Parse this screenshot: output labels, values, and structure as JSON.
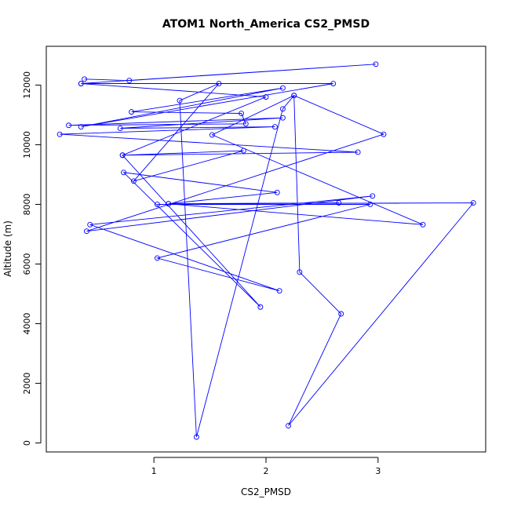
{
  "chart_data": {
    "type": "line",
    "title": "ATOM1 North_America CS2_PMSD",
    "xlabel": "CS2_PMSD",
    "ylabel": "Altitude (m)",
    "xlim": [
      0.04,
      3.96
    ],
    "ylim": [
      -300,
      13300
    ],
    "x_ticks": [
      1,
      2,
      3
    ],
    "y_ticks": [
      0,
      2000,
      4000,
      6000,
      8000,
      10000,
      12000
    ],
    "line_color": "#0000ff",
    "marker": "open-circle",
    "grid": false,
    "series": [
      {
        "points": [
          [
            0.38,
            12200
          ],
          [
            0.78,
            12150
          ],
          [
            2.98,
            12700
          ],
          [
            0.35,
            12050
          ],
          [
            2.6,
            12050
          ],
          [
            0.35,
            10600
          ],
          [
            2.15,
            11900
          ],
          [
            0.8,
            11100
          ],
          [
            1.78,
            11050
          ],
          [
            1.82,
            10700
          ],
          [
            0.24,
            10650
          ],
          [
            2.15,
            10900
          ],
          [
            0.7,
            10550
          ],
          [
            2.08,
            10600
          ],
          [
            0.16,
            10350
          ],
          [
            2.82,
            9750
          ],
          [
            0.72,
            9650
          ],
          [
            1.8,
            9800
          ],
          [
            0.82,
            8780
          ],
          [
            1.58,
            12050
          ],
          [
            1.23,
            11480
          ],
          [
            1.38,
            200
          ],
          [
            2.15,
            11200
          ],
          [
            2.25,
            11650
          ],
          [
            1.52,
            10330
          ],
          [
            3.4,
            7320
          ],
          [
            1.13,
            8020
          ],
          [
            3.85,
            8050
          ],
          [
            2.2,
            580
          ],
          [
            2.67,
            4330
          ],
          [
            2.3,
            5730
          ],
          [
            2.25,
            11650
          ],
          [
            3.05,
            10350
          ],
          [
            0.4,
            7100
          ],
          [
            2.95,
            8280
          ],
          [
            0.43,
            7320
          ],
          [
            2.12,
            5100
          ],
          [
            1.03,
            6200
          ],
          [
            2.93,
            8000
          ],
          [
            1.03,
            8000
          ],
          [
            2.65,
            8050
          ],
          [
            1.13,
            8020
          ],
          [
            2.1,
            8400
          ],
          [
            0.73,
            9070
          ],
          [
            1.95,
            4560
          ],
          [
            0.72,
            9650
          ],
          [
            2.0,
            11600
          ],
          [
            0.35,
            12050
          ]
        ]
      }
    ]
  }
}
